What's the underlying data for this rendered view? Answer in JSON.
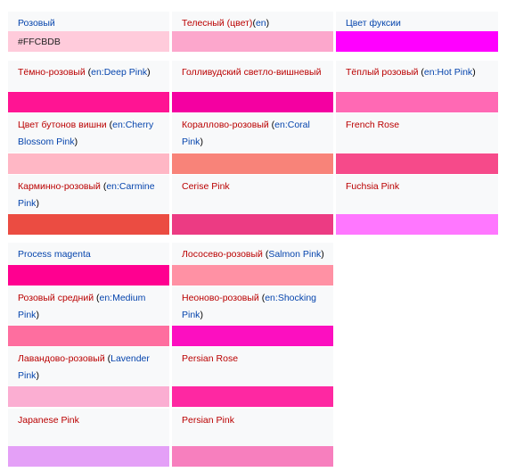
{
  "colors": {
    "label_bg": "#f8f9fa",
    "red_link": "#ba0000",
    "blue_link": "#0645ad"
  },
  "rows": [
    [
      {
        "parts": [
          {
            "text": "Розовый",
            "link": "blue"
          }
        ],
        "color": "#ffcbdb",
        "swatch_text": "#FFCBDB"
      },
      {
        "parts": [
          {
            "text": "Телесный (цвет)",
            "link": "red"
          },
          {
            "text": "(",
            "link": "plain"
          },
          {
            "text": "en",
            "link": "blue"
          },
          {
            "text": ")",
            "link": "plain"
          }
        ],
        "color": "#fca7cc"
      },
      {
        "parts": [
          {
            "text": "Цвет фуксии",
            "link": "blue"
          }
        ],
        "color": "#ff00ff"
      }
    ],
    [
      {
        "parts": [
          {
            "text": "Тёмно-розовый",
            "link": "red"
          },
          {
            "text": " (",
            "link": "plain"
          },
          {
            "text": "en:Deep Pink",
            "link": "blue"
          },
          {
            "text": ")",
            "link": "plain"
          }
        ],
        "color": "#ff1493"
      },
      {
        "parts": [
          {
            "text": "Голливудский светло-вишневый",
            "link": "red"
          }
        ],
        "color": "#f400a1"
      },
      {
        "parts": [
          {
            "text": "Тёплый розовый",
            "link": "red"
          },
          {
            "text": " (",
            "link": "plain"
          },
          {
            "text": "en:Hot Pink",
            "link": "blue"
          },
          {
            "text": ")",
            "link": "plain"
          }
        ],
        "color": "#ff69b4"
      }
    ],
    [
      {
        "parts": [
          {
            "text": "Цвет бутонов вишни",
            "link": "red"
          },
          {
            "text": " (",
            "link": "plain"
          },
          {
            "text": "en:Cherry Blossom Pink",
            "link": "blue"
          },
          {
            "text": ")",
            "link": "plain"
          }
        ],
        "color": "#ffb7c5"
      },
      {
        "parts": [
          {
            "text": "Кораллово-розовый",
            "link": "red"
          },
          {
            "text": " (",
            "link": "plain"
          },
          {
            "text": "en:Coral Pink",
            "link": "blue"
          },
          {
            "text": ")",
            "link": "plain"
          }
        ],
        "color": "#f88379"
      },
      {
        "parts": [
          {
            "text": "French Rose",
            "link": "red"
          }
        ],
        "color": "#f64a8a"
      }
    ],
    [
      {
        "parts": [
          {
            "text": "Карминно-розовый",
            "link": "red"
          },
          {
            "text": " (",
            "link": "plain"
          },
          {
            "text": "en:Carmine Pink",
            "link": "blue"
          },
          {
            "text": ")",
            "link": "plain"
          }
        ],
        "color": "#eb4c42"
      },
      {
        "parts": [
          {
            "text": "Cerise Pink",
            "link": "red"
          }
        ],
        "color": "#ec3b83"
      },
      {
        "parts": [
          {
            "text": "Fuchsia Pink",
            "link": "red"
          }
        ],
        "color": "#ff77ff"
      }
    ],
    [
      {
        "parts": [
          {
            "text": "Process magenta",
            "link": "blue"
          }
        ],
        "color": "#ff0090"
      },
      {
        "parts": [
          {
            "text": "Лососево-розовый",
            "link": "red"
          },
          {
            "text": " (",
            "link": "plain"
          },
          {
            "text": "Salmon Pink",
            "link": "blue"
          },
          {
            "text": ")",
            "link": "plain"
          }
        ],
        "color": "#ff91a4"
      },
      null
    ],
    [
      {
        "parts": [
          {
            "text": "Розовый средний",
            "link": "red"
          },
          {
            "text": " (",
            "link": "plain"
          },
          {
            "text": "en:Medium Pink",
            "link": "blue"
          },
          {
            "text": ")",
            "link": "plain"
          }
        ],
        "color": "#fe6e9f"
      },
      {
        "parts": [
          {
            "text": "Неоново-розовый",
            "link": "red"
          },
          {
            "text": " (",
            "link": "plain"
          },
          {
            "text": "en:Shocking Pink",
            "link": "blue"
          },
          {
            "text": ")",
            "link": "plain"
          }
        ],
        "color": "#fc0fc0"
      },
      null
    ],
    [
      {
        "parts": [
          {
            "text": "Лавандово-розовый",
            "link": "red"
          },
          {
            "text": " (",
            "link": "plain"
          },
          {
            "text": "Lavender Pink",
            "link": "blue"
          },
          {
            "text": ")",
            "link": "plain"
          }
        ],
        "color": "#fbaed2"
      },
      {
        "parts": [
          {
            "text": "Persian Rose",
            "link": "red"
          }
        ],
        "color": "#fe28a2"
      },
      null
    ],
    [
      {
        "parts": [
          {
            "text": "Japanese Pink",
            "link": "red"
          }
        ],
        "color": "#e4a0f7"
      },
      {
        "parts": [
          {
            "text": "Persian Pink",
            "link": "red"
          }
        ],
        "color": "#f77fbe"
      },
      null
    ]
  ]
}
